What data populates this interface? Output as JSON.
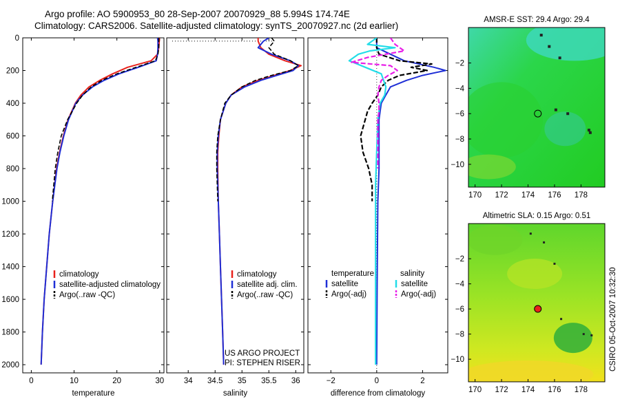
{
  "header": {
    "line1": "Argo profile: AO 5900953_80 28-Sep-2007 20070929_88 5.994S 174.74E",
    "line2": "Climatology: CARS2006. Satellite-adjusted climatology: synTS_20070927.nc (2d earlier)"
  },
  "footer": {
    "project": "US ARGO PROJECT",
    "pi": "PI: STEPHEN RISER",
    "stamp": "CSIRO 05-Oct-2007 10:32:30"
  },
  "colors": {
    "climatology": "#e8211b",
    "satellite": "#1f2fd6",
    "argo": "#000000",
    "sal_satellite": "#22dde8",
    "sal_argo": "#e81ee8"
  },
  "chart_data": [
    {
      "type": "line",
      "id": "temperature",
      "xlabel": "temperature",
      "ylabel": "",
      "xlim": [
        -2,
        31
      ],
      "ylim": [
        2050,
        0
      ],
      "x_ticks": [
        0,
        10,
        20,
        30
      ],
      "y_ticks": [
        0,
        200,
        400,
        600,
        800,
        1000,
        1200,
        1400,
        1600,
        1800,
        2000
      ],
      "legend": [
        "climatology",
        "satellite-adjusted climatology",
        "Argo(..raw -QC)"
      ],
      "series": [
        {
          "name": "climatology",
          "depth": [
            0,
            20,
            60,
            100,
            140,
            180,
            220,
            260,
            300,
            350,
            400,
            500,
            600,
            700,
            800,
            1000,
            1200,
            1400,
            1600,
            1800,
            2000
          ],
          "values": [
            29.9,
            29.9,
            29.8,
            29.5,
            28.0,
            22.5,
            19.0,
            16.0,
            13.5,
            11.6,
            10.3,
            8.6,
            7.5,
            6.6,
            5.9,
            5.0,
            4.2,
            3.6,
            3.0,
            2.6,
            2.3
          ]
        },
        {
          "name": "satellite-adjusted climatology",
          "depth": [
            0,
            20,
            60,
            100,
            140,
            180,
            220,
            260,
            300,
            350,
            400,
            500,
            600,
            700,
            800,
            1000,
            1200,
            1400,
            1600,
            1800,
            2000
          ],
          "values": [
            29.5,
            29.6,
            29.6,
            29.5,
            29.2,
            25.0,
            20.5,
            17.0,
            14.3,
            12.0,
            10.4,
            8.7,
            7.6,
            6.7,
            6.0,
            5.0,
            4.2,
            3.6,
            3.0,
            2.6,
            2.3
          ]
        },
        {
          "name": "Argo(..raw -QC)",
          "depth": [
            0,
            20,
            60,
            100,
            140,
            180,
            220,
            260,
            300,
            350,
            400,
            500,
            600,
            700,
            800,
            1000
          ],
          "values": [
            29.8,
            29.8,
            29.8,
            29.6,
            29.0,
            24.5,
            20.0,
            16.5,
            14.0,
            12.0,
            10.6,
            8.5,
            7.0,
            6.2,
            5.6,
            4.9
          ]
        }
      ]
    },
    {
      "type": "line",
      "id": "salinity",
      "xlabel": "salinity",
      "xlim": [
        33.6,
        36.15
      ],
      "ylim": [
        2050,
        0
      ],
      "x_ticks": [
        34,
        34.5,
        35,
        35.5,
        36
      ],
      "x_ticklabels": [
        "34",
        "34.5",
        "35",
        "35.5",
        "36"
      ],
      "y_ticks": [
        0,
        200,
        400,
        600,
        800,
        1000,
        1200,
        1400,
        1600,
        1800,
        2000
      ],
      "legend": [
        "climatology",
        "satellite adj. clim.",
        "Argo(..raw -QC)"
      ],
      "series": [
        {
          "name": "climatology",
          "depth": [
            0,
            20,
            60,
            100,
            140,
            170,
            200,
            230,
            260,
            300,
            350,
            400,
            500,
            600,
            700,
            800,
            1000,
            1200,
            1400,
            1600,
            1800,
            2000
          ],
          "values": [
            35.3,
            35.3,
            35.35,
            35.5,
            35.8,
            36.1,
            35.9,
            35.6,
            35.3,
            35.0,
            34.8,
            34.7,
            34.6,
            34.57,
            34.55,
            34.55,
            34.56,
            34.58,
            34.6,
            34.62,
            34.64,
            34.66
          ]
        },
        {
          "name": "satellite adj. clim.",
          "depth": [
            0,
            20,
            60,
            100,
            140,
            170,
            200,
            230,
            260,
            300,
            350,
            400,
            500,
            600,
            700,
            800,
            1000,
            1200,
            1400,
            1600,
            1800,
            2000
          ],
          "values": [
            35.5,
            35.4,
            35.3,
            35.55,
            35.9,
            36.05,
            35.95,
            35.65,
            35.35,
            35.05,
            34.8,
            34.7,
            34.6,
            34.56,
            34.54,
            34.54,
            34.56,
            34.58,
            34.6,
            34.62,
            34.64,
            34.66
          ]
        },
        {
          "name": "Argo(..raw -QC)",
          "depth": [
            0,
            20,
            60,
            100,
            140,
            170,
            200,
            230,
            260,
            300,
            350,
            400,
            500,
            600,
            700,
            800,
            1000
          ],
          "values": [
            35.55,
            35.6,
            35.5,
            35.6,
            35.9,
            36.05,
            35.9,
            35.55,
            35.25,
            35.0,
            34.8,
            34.68,
            34.6,
            34.55,
            34.53,
            34.53,
            34.55
          ]
        }
      ]
    },
    {
      "type": "line",
      "id": "difference",
      "xlabel": "difference from climatology",
      "xlim": [
        -3,
        3.1
      ],
      "ylim": [
        2050,
        0
      ],
      "x_ticks": [
        -2,
        0,
        2
      ],
      "y_ticks": [
        0,
        200,
        400,
        600,
        800,
        1000,
        1200,
        1400,
        1600,
        1800,
        2000
      ],
      "legend_left_title": "temperature",
      "legend_right_title": "salinity",
      "legend": [
        "satellite",
        "Argo(-adj)",
        "satellite",
        "Argo(-adj)"
      ],
      "series": [
        {
          "name": "temperature satellite",
          "depth": [
            0,
            60,
            100,
            140,
            180,
            200,
            230,
            260,
            300,
            350,
            400,
            450,
            500,
            600,
            800,
            1000,
            1500,
            2000
          ],
          "values": [
            0,
            0,
            0.6,
            1.2,
            2.5,
            3.0,
            2.0,
            1.3,
            0.6,
            0.4,
            0.2,
            0.15,
            0.1,
            0.1,
            0.1,
            0.05,
            0.02,
            0
          ]
        },
        {
          "name": "temperature Argo(-adj)",
          "depth": [
            0,
            60,
            100,
            140,
            160,
            180,
            200,
            230,
            260,
            300,
            350,
            400,
            450,
            500,
            600,
            700,
            800,
            900,
            1000
          ],
          "values": [
            0,
            0,
            0.1,
            1.0,
            2.4,
            1.5,
            2.2,
            1.0,
            0.5,
            0.2,
            0.05,
            -0.2,
            -0.4,
            -0.5,
            -0.7,
            -0.6,
            -0.35,
            -0.2,
            -0.2
          ]
        },
        {
          "name": "salinity satellite",
          "depth": [
            0,
            40,
            60,
            80,
            100,
            120,
            140,
            180,
            220,
            260,
            300,
            350,
            400,
            500,
            700,
            900,
            1200,
            1500,
            1800,
            2000
          ],
          "values": [
            0,
            -0.4,
            0.8,
            -0.3,
            -0.8,
            -1.0,
            -1.2,
            -0.5,
            0.2,
            0.3,
            0.4,
            0.35,
            0.15,
            0.05,
            0,
            -0.05,
            -0.05,
            -0.05,
            -0.05,
            -0.05
          ]
        },
        {
          "name": "salinity Argo(-adj)",
          "depth": [
            0,
            40,
            80,
            120,
            150,
            170,
            200,
            230,
            260,
            300,
            350,
            400,
            450,
            500,
            600,
            700,
            800
          ],
          "values": [
            0.6,
            0.8,
            1.2,
            -0.4,
            -1.1,
            0.6,
            0.9,
            0.5,
            0.2,
            0.1,
            0.05,
            0.1,
            0.1,
            0.05,
            0.05,
            0.05,
            0.05
          ]
        }
      ]
    },
    {
      "type": "heatmap",
      "id": "sst_map",
      "title": "AMSR-E SST: 29.4 Argo: 29.4",
      "xlim": [
        169.5,
        179.8
      ],
      "ylim": [
        -11.8,
        0.8
      ],
      "x_ticks": [
        170,
        172,
        174,
        176,
        178
      ],
      "y_ticks": [
        -2,
        -4,
        -6,
        -8,
        -10
      ],
      "marker": {
        "lon": 174.74,
        "lat": -5.994
      },
      "colors": {
        "base": "#22cc22",
        "warm_patch": "#33dd44",
        "cool_patch": "#33bbbb"
      }
    },
    {
      "type": "heatmap",
      "id": "sla_map",
      "title": "Altimetric SLA: 0.15 Argo: 0.51",
      "xlim": [
        169.5,
        179.8
      ],
      "ylim": [
        -11.8,
        0.8
      ],
      "x_ticks": [
        170,
        172,
        174,
        176,
        178
      ],
      "y_ticks": [
        -2,
        -4,
        -6,
        -8,
        -10
      ],
      "marker": {
        "lon": 174.74,
        "lat": -5.994
      },
      "colors": {
        "base": "#88e022",
        "low": "#22bb44",
        "high": "#e8e022"
      }
    }
  ]
}
